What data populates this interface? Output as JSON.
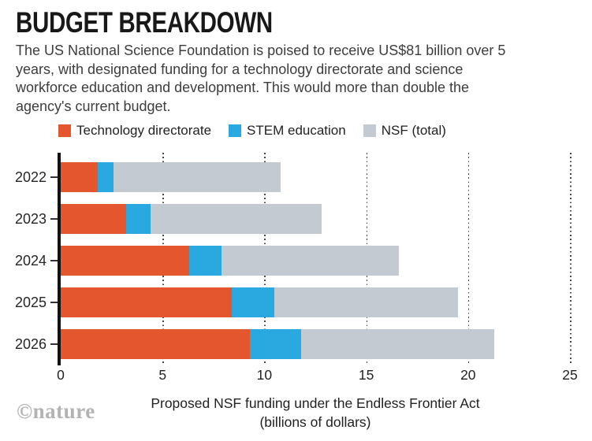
{
  "header": {
    "title": "BUDGET BREAKDOWN",
    "subtitle": "The US National Science Foundation is poised to receive US$81 billion over 5 years, with designated funding for a technology directorate and science workforce education and development. This would more than double the agency's current budget."
  },
  "legend": {
    "items": [
      {
        "label": "Technology directorate",
        "color": "#e4572e"
      },
      {
        "label": "STEM education",
        "color": "#29a9e0"
      },
      {
        "label": "NSF (total)",
        "color": "#c4cad1"
      }
    ]
  },
  "chart_data": {
    "type": "bar",
    "orientation": "horizontal",
    "stacked": true,
    "title": "BUDGET BREAKDOWN",
    "categories": [
      "2022",
      "2023",
      "2024",
      "2025",
      "2026"
    ],
    "series": [
      {
        "name": "Technology directorate",
        "color": "#e4572e",
        "values": [
          1.8,
          3.2,
          6.3,
          8.4,
          9.3
        ]
      },
      {
        "name": "STEM education",
        "color": "#29a9e0",
        "values": [
          0.8,
          1.2,
          1.6,
          2.1,
          2.5
        ]
      },
      {
        "name": "NSF (total)",
        "color": "#c4cad1",
        "values": [
          10.8,
          12.8,
          16.6,
          19.5,
          21.3
        ],
        "note": "full bar length; grey segment is the remainder after the two designated slices"
      }
    ],
    "xlabel_line1": "Proposed NSF funding under the Endless Frontier Act",
    "xlabel_line2": "(billions of dollars)",
    "x_ticks": [
      0,
      5,
      10,
      15,
      20,
      25
    ],
    "xlim": [
      0,
      25
    ],
    "grid": "dotted-vertical",
    "legend_position": "top",
    "axis_color": "#111111"
  },
  "watermark": "©nature"
}
